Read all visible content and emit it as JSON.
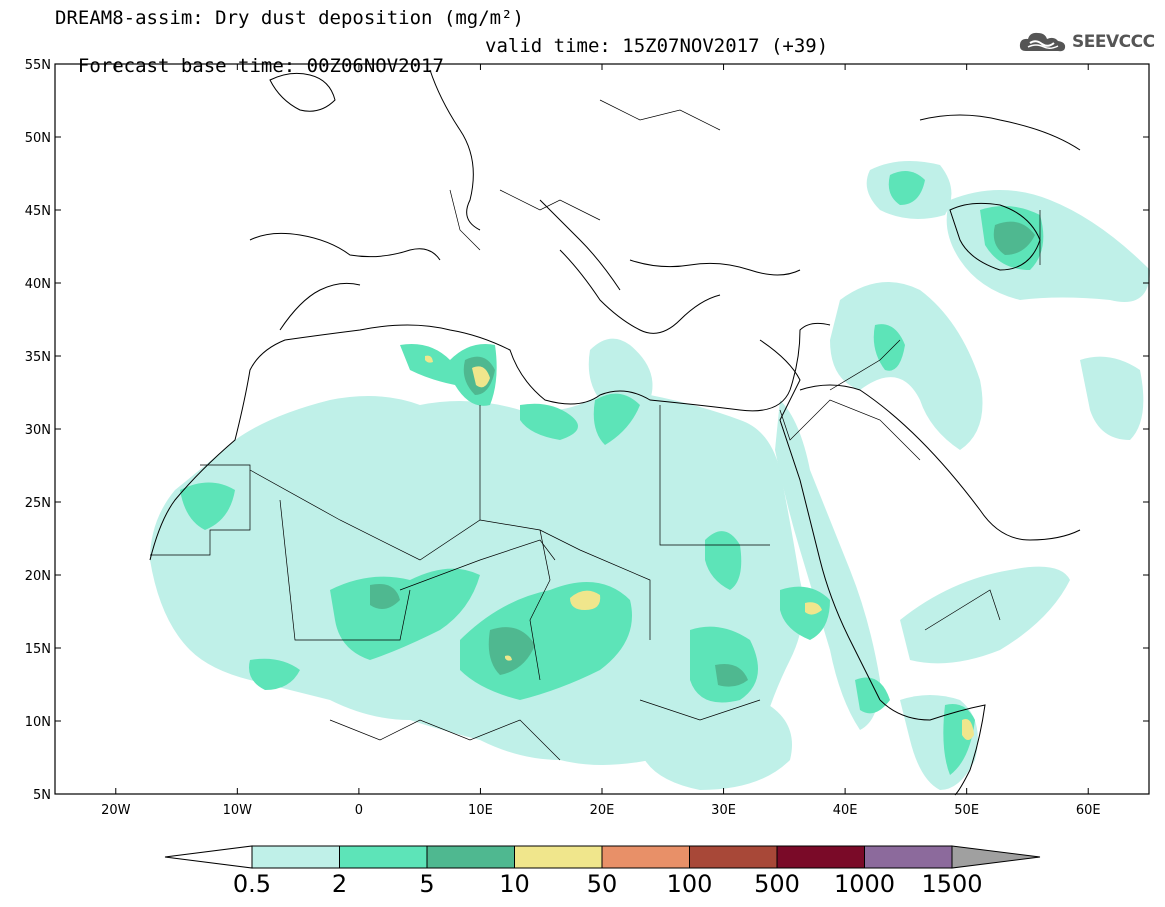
{
  "title": {
    "line1": "DREAM8-assim: Dry dust deposition (mg/m²)",
    "line2_base": "Forecast base time: 00Z06NOV2017",
    "line2_valid": "valid time: 15Z07NOV2017 (+39)"
  },
  "logo": {
    "text": "SEEVCCC",
    "icon": "cloud-logo-icon"
  },
  "axes": {
    "lat_ticks": [
      "55N",
      "50N",
      "45N",
      "40N",
      "35N",
      "30N",
      "25N",
      "20N",
      "15N",
      "10N",
      "5N"
    ],
    "lon_ticks": [
      "20W",
      "10W",
      "0",
      "10E",
      "20E",
      "30E",
      "40E",
      "50E",
      "60E"
    ],
    "lon_range": [
      -25,
      65
    ],
    "lat_range": [
      5,
      55
    ]
  },
  "colorbar": {
    "labels": [
      "0.5",
      "2",
      "5",
      "10",
      "50",
      "100",
      "500",
      "1000",
      "1500"
    ],
    "colors": [
      "#bff0e8",
      "#5de4b8",
      "#4fb890",
      "#f0e68c",
      "#e89068",
      "#a84838",
      "#7a0a28",
      "#8c6a9c",
      "#a0a0a0"
    ]
  }
}
